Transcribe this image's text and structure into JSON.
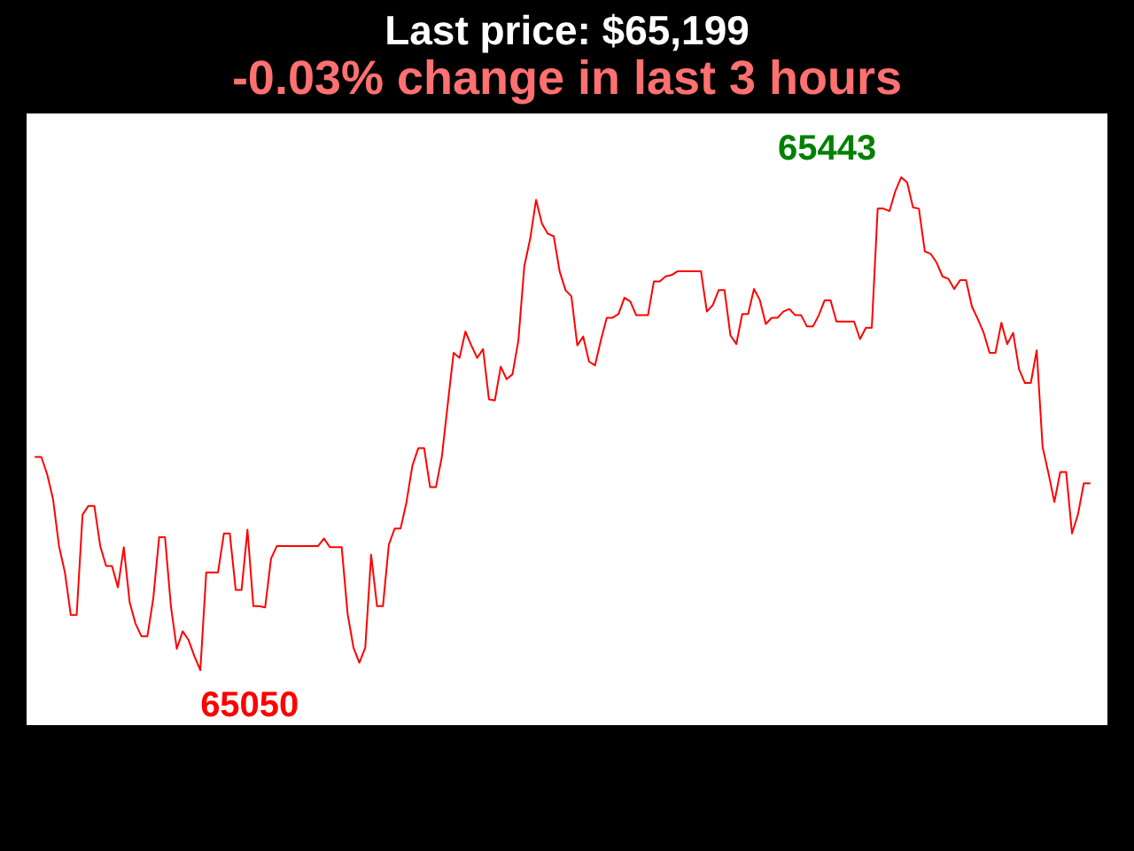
{
  "chart_data": {
    "type": "line",
    "title": "Last price: $65,199",
    "subtitle": "-0.03% change in last 3 hours",
    "categories": [
      null,
      null,
      null,
      null,
      null,
      null,
      null,
      null,
      null,
      null,
      null,
      null,
      null,
      null,
      null,
      null,
      null,
      null,
      null,
      null,
      null,
      null,
      null,
      null,
      null,
      null,
      null,
      null,
      null,
      null,
      null,
      null,
      null,
      null,
      null,
      null,
      null,
      null,
      null,
      null,
      null,
      null,
      null,
      null,
      null,
      null,
      null,
      null,
      null,
      null,
      null,
      null,
      null,
      null,
      null,
      null,
      null,
      null,
      null,
      null,
      null,
      null,
      null,
      null,
      null,
      null,
      null,
      null,
      null,
      null,
      null,
      null,
      null,
      null,
      null,
      null,
      null,
      null,
      null,
      null,
      null,
      null,
      null,
      null,
      null,
      null,
      null,
      null,
      null,
      null,
      null,
      null,
      null,
      null,
      null,
      null,
      null,
      null,
      null,
      null,
      null,
      null,
      null,
      null,
      null,
      null,
      null,
      null,
      null,
      null,
      null,
      null,
      null,
      null,
      null,
      null,
      null,
      null,
      null,
      null,
      null,
      null,
      null,
      null,
      null,
      null,
      null,
      null,
      null,
      null,
      null,
      null,
      null,
      null,
      null,
      null,
      null,
      null,
      null,
      null,
      null,
      null,
      null,
      null,
      null,
      null,
      null,
      null,
      null,
      null,
      null,
      null,
      null,
      null,
      null,
      null,
      null,
      null,
      null,
      null,
      null,
      null,
      null,
      null,
      null,
      null,
      null,
      null,
      null,
      null,
      null,
      null,
      null,
      null,
      null,
      null,
      null,
      null,
      null,
      null
    ],
    "series": [
      {
        "color": "#ff0000",
        "values": [
          65220,
          65220,
          65206,
          65186,
          65149,
          65128,
          65094,
          65094,
          65174,
          65181,
          65181,
          65149,
          65133,
          65133,
          65116,
          65148,
          65104,
          65087,
          65077,
          65077,
          65107,
          65156,
          65156,
          65101,
          65067,
          65081,
          65074,
          65061,
          65050,
          65128,
          65128,
          65128,
          65159,
          65159,
          65114,
          65114,
          65162,
          65101,
          65101,
          65100,
          65139,
          65149,
          65149,
          65149,
          65149,
          65149,
          65149,
          65149,
          65149,
          65155,
          65148,
          65148,
          65148,
          65095,
          65068,
          65056,
          65068,
          65142,
          65101,
          65101,
          65150,
          65163,
          65163,
          65184,
          65213,
          65227,
          65227,
          65196,
          65196,
          65220,
          65262,
          65303,
          65299,
          65320,
          65309,
          65299,
          65306,
          65266,
          65265,
          65292,
          65282,
          65286,
          65313,
          65372,
          65394,
          65425,
          65406,
          65398,
          65396,
          65368,
          65353,
          65348,
          65309,
          65316,
          65296,
          65293,
          65313,
          65331,
          65331,
          65334,
          65347,
          65344,
          65333,
          65333,
          65333,
          65360,
          65360,
          65364,
          65365,
          65368,
          65368,
          65368,
          65368,
          65368,
          65336,
          65341,
          65353,
          65353,
          65317,
          65310,
          65334,
          65334,
          65354,
          65345,
          65326,
          65331,
          65331,
          65336,
          65338,
          65333,
          65333,
          65324,
          65324,
          65333,
          65345,
          65345,
          65328,
          65328,
          65328,
          65328,
          65314,
          65323,
          65323,
          65418,
          65418,
          65416,
          65432,
          65443,
          65439,
          65419,
          65418,
          65384,
          65382,
          65375,
          65364,
          65362,
          65354,
          65361,
          65361,
          65340,
          65330,
          65319,
          65303,
          65303,
          65327,
          65310,
          65319,
          65290,
          65279,
          65279,
          65305,
          65228,
          65207,
          65184,
          65208,
          65208,
          65159,
          65174,
          65199,
          65199
        ],
        "value_labels": [
          null,
          null,
          null,
          null,
          null,
          null,
          null,
          null,
          null,
          null,
          null,
          null,
          null,
          null,
          null,
          null,
          null,
          null,
          null,
          null,
          null,
          null,
          null,
          null,
          null,
          null,
          null,
          null,
          "65050",
          null,
          null,
          null,
          null,
          null,
          null,
          null,
          null,
          null,
          null,
          null,
          null,
          null,
          null,
          null,
          null,
          null,
          null,
          null,
          null,
          null,
          null,
          null,
          null,
          null,
          null,
          null,
          null,
          null,
          null,
          null,
          null,
          null,
          null,
          null,
          null,
          null,
          null,
          null,
          null,
          null,
          null,
          null,
          null,
          null,
          null,
          null,
          null,
          null,
          null,
          null,
          null,
          null,
          null,
          null,
          null,
          null,
          null,
          null,
          null,
          null,
          null,
          null,
          null,
          null,
          null,
          null,
          null,
          null,
          null,
          null,
          null,
          null,
          null,
          null,
          null,
          null,
          null,
          null,
          null,
          null,
          null,
          null,
          null,
          null,
          null,
          null,
          null,
          null,
          null,
          null,
          null,
          null,
          null,
          null,
          null,
          null,
          null,
          null,
          null,
          null,
          null,
          null,
          null,
          null,
          null,
          null,
          null,
          null,
          null,
          null,
          null,
          null,
          null,
          null,
          null,
          null,
          null,
          "65443",
          null,
          null,
          null,
          null,
          null,
          null,
          null,
          null,
          null,
          null,
          null,
          null,
          null,
          null,
          null,
          null,
          null,
          null,
          null,
          null,
          null,
          null,
          null,
          null,
          null,
          null,
          null,
          null,
          null,
          null,
          null,
          null
        ]
      }
    ]
  }
}
